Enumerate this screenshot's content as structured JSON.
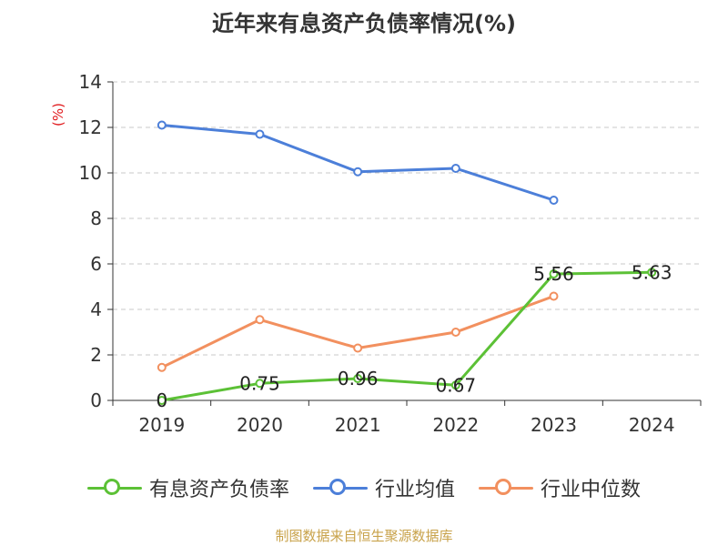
{
  "chart_data": {
    "type": "line",
    "title": "近年来有息资产负债率情况(%)",
    "y_unit": "(%)",
    "categories": [
      "2019",
      "2020",
      "2021",
      "2022",
      "2023",
      "2024"
    ],
    "ylim": [
      0,
      14
    ],
    "yticks": [
      0,
      2,
      4,
      6,
      8,
      10,
      12,
      14
    ],
    "grid": true,
    "legend_position": "bottom",
    "series": [
      {
        "name": "有息资产负债率",
        "color": "#5cc136",
        "values": [
          0,
          0.75,
          0.96,
          0.67,
          5.56,
          5.63
        ],
        "data_labels": [
          "0",
          "0.75",
          "0.96",
          "0.67",
          "5.56",
          "5.63"
        ]
      },
      {
        "name": "行业均值",
        "color": "#4c7fd9",
        "values": [
          12.1,
          11.7,
          10.05,
          10.2,
          8.8,
          null
        ]
      },
      {
        "name": "行业中位数",
        "color": "#f2905f",
        "values": [
          1.45,
          3.55,
          2.3,
          3.0,
          4.58,
          null
        ]
      }
    ],
    "source": "制图数据来自恒生聚源数据库"
  }
}
